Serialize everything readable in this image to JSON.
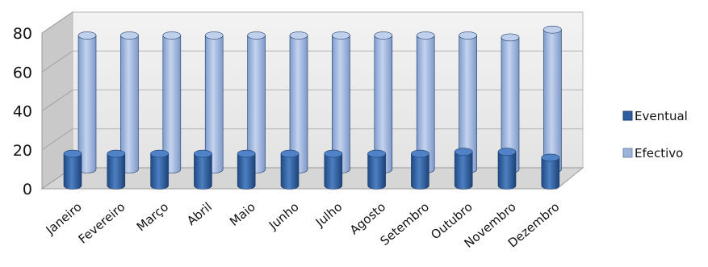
{
  "chart_data": {
    "type": "bar",
    "categories": [
      "Janeiro",
      "Fevereiro",
      "Março",
      "Abril",
      "Maio",
      "Junho",
      "Julho",
      "Agosto",
      "Setembro",
      "Outubro",
      "Novembro",
      "Dezembro"
    ],
    "series": [
      {
        "name": "Eventual",
        "values": [
          18,
          18,
          18,
          18,
          18,
          18,
          18,
          18,
          18,
          19,
          19,
          16
        ],
        "color": "#2f5f9e"
      },
      {
        "name": "Efectivo",
        "values": [
          68,
          68,
          68,
          68,
          68,
          68,
          68,
          68,
          68,
          68,
          67,
          71
        ],
        "color": "#9bb3d9"
      }
    ],
    "ylim": [
      0,
      80
    ],
    "yticks": [
      0,
      20,
      40,
      60,
      80
    ],
    "title": "",
    "xlabel": "",
    "ylabel": "",
    "grid": true,
    "legend_position": "right",
    "render": "3d-cylinder"
  }
}
